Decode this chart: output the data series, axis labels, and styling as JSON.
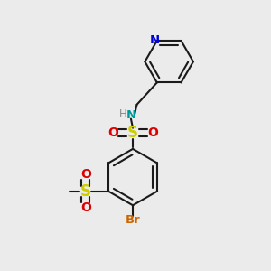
{
  "background_color": "#ebebeb",
  "bond_color": "#1a1a1a",
  "bond_width": 1.5,
  "figsize": [
    3.0,
    3.0
  ],
  "dpi": 100,
  "colors": {
    "N": "#0000dd",
    "O": "#dd0000",
    "S": "#cccc00",
    "Br": "#cc6600",
    "NH": "#009999",
    "H": "#888888",
    "C": "#1a1a1a"
  }
}
